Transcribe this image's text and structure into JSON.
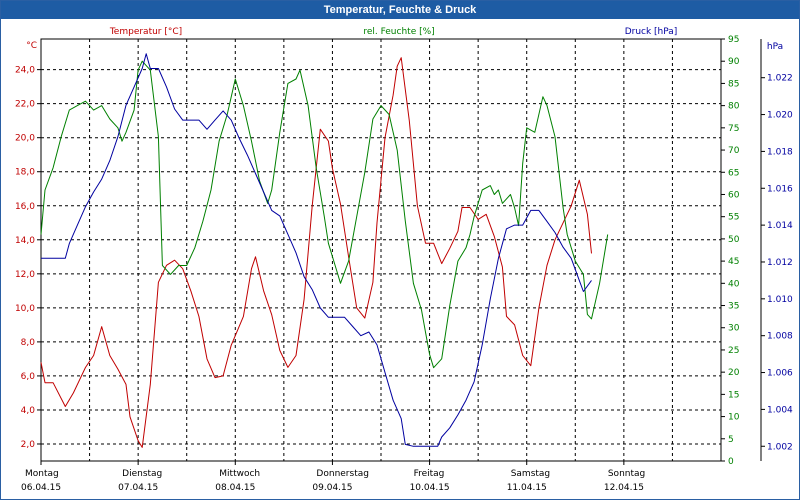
{
  "window": {
    "title": "Temperatur, Feuchte & Druck"
  },
  "colors": {
    "temperature": "#c00000",
    "humidity": "#008000",
    "pressure": "#0000a0",
    "grid": "#000000",
    "title_bar": "#1e5ca4"
  },
  "chart_data": {
    "type": "line",
    "title": "Temperatur, Feuchte & Druck",
    "grid": true,
    "x_ticks": [
      {
        "day": "Montag",
        "date": "06.04.15",
        "x": 0
      },
      {
        "day": "Dienstag",
        "date": "07.04.15",
        "x": 24
      },
      {
        "day": "Mittwoch",
        "date": "08.04.15",
        "x": 48
      },
      {
        "day": "Donnerstag",
        "date": "09.04.15",
        "x": 72
      },
      {
        "day": "Freitag",
        "date": "10.04.15",
        "x": 96
      },
      {
        "day": "Samstag",
        "date": "11.04.15",
        "x": 120
      },
      {
        "day": "Sonntag",
        "date": "12.04.15",
        "x": 144
      }
    ],
    "x_range_hours": [
      0,
      168
    ],
    "axes": {
      "temperature": {
        "label": "Temperatur [°C]",
        "unit": "°C",
        "range": [
          1,
          25.8
        ],
        "ticks": [
          "2,0",
          "4,0",
          "6,0",
          "8,0",
          "10,0",
          "12,0",
          "14,0",
          "16,0",
          "18,0",
          "20,0",
          "22,0",
          "24,0"
        ],
        "tick_values": [
          2,
          4,
          6,
          8,
          10,
          12,
          14,
          16,
          18,
          20,
          22,
          24
        ]
      },
      "humidity": {
        "label": "rel. Feuchte [%]",
        "unit": "%",
        "range": [
          0,
          95
        ],
        "ticks": [
          "0",
          "5",
          "10",
          "15",
          "20",
          "25",
          "30",
          "35",
          "40",
          "45",
          "50",
          "55",
          "60",
          "65",
          "70",
          "75",
          "80",
          "85",
          "90",
          "95"
        ],
        "tick_values": [
          0,
          5,
          10,
          15,
          20,
          25,
          30,
          35,
          40,
          45,
          50,
          55,
          60,
          65,
          70,
          75,
          80,
          85,
          90,
          95
        ]
      },
      "pressure": {
        "label": "Druck [hPa]",
        "unit": "hPa",
        "range": [
          1001.2,
          1024.1
        ],
        "ticks": [
          "1.002",
          "1.004",
          "1.006",
          "1.008",
          "1.010",
          "1.012",
          "1.014",
          "1.016",
          "1.018",
          "1.020",
          "1.022"
        ],
        "tick_values": [
          1002,
          1004,
          1006,
          1008,
          1010,
          1012,
          1014,
          1016,
          1018,
          1020,
          1022
        ]
      }
    },
    "series": [
      {
        "name": "Temperatur [°C]",
        "axis": "temperature",
        "color": "#c00000",
        "points": [
          [
            0,
            6.8
          ],
          [
            1,
            5.6
          ],
          [
            3,
            5.6
          ],
          [
            6,
            4.2
          ],
          [
            8,
            5
          ],
          [
            11,
            6.5
          ],
          [
            13,
            7.2
          ],
          [
            15,
            8.9
          ],
          [
            17,
            7.2
          ],
          [
            19,
            6.4
          ],
          [
            21,
            5.5
          ],
          [
            22,
            3.6
          ],
          [
            24,
            2.2
          ],
          [
            25,
            1.8
          ],
          [
            27,
            5.5
          ],
          [
            29,
            11.5
          ],
          [
            31,
            12.5
          ],
          [
            33,
            12.8
          ],
          [
            35,
            12.3
          ],
          [
            37,
            11
          ],
          [
            39,
            9.5
          ],
          [
            41,
            7
          ],
          [
            43,
            5.9
          ],
          [
            45,
            6
          ],
          [
            47,
            7.8
          ],
          [
            50,
            9.5
          ],
          [
            52,
            12.3
          ],
          [
            53,
            13
          ],
          [
            55,
            11
          ],
          [
            57,
            9.6
          ],
          [
            59,
            7.5
          ],
          [
            61,
            6.5
          ],
          [
            63,
            7.2
          ],
          [
            65,
            10.5
          ],
          [
            67,
            16
          ],
          [
            69,
            20.5
          ],
          [
            71,
            19.8
          ],
          [
            72,
            18.2
          ],
          [
            74,
            16.1
          ],
          [
            76,
            13
          ],
          [
            78,
            10
          ],
          [
            80,
            9.4
          ],
          [
            82,
            11.5
          ],
          [
            83,
            15
          ],
          [
            85,
            20
          ],
          [
            87,
            22.5
          ],
          [
            88,
            24.2
          ],
          [
            89,
            24.7
          ],
          [
            91,
            21
          ],
          [
            93,
            16
          ],
          [
            95,
            13.8
          ],
          [
            97,
            13.8
          ],
          [
            99,
            12.6
          ],
          [
            101,
            13.5
          ],
          [
            103,
            14.5
          ],
          [
            104,
            15.9
          ],
          [
            106,
            15.9
          ],
          [
            108,
            15.2
          ],
          [
            110,
            15.5
          ],
          [
            112,
            14.2
          ],
          [
            114,
            12.4
          ],
          [
            115,
            9.5
          ],
          [
            117,
            9
          ],
          [
            119,
            7.2
          ],
          [
            121,
            6.6
          ],
          [
            123,
            10
          ],
          [
            125,
            12.5
          ],
          [
            127,
            14
          ],
          [
            129,
            15
          ],
          [
            131,
            16
          ],
          [
            133,
            17.5
          ],
          [
            135,
            15.5
          ],
          [
            136,
            13.2
          ]
        ]
      },
      {
        "name": "rel. Feuchte [%]",
        "axis": "humidity",
        "color": "#008000",
        "points": [
          [
            0,
            51
          ],
          [
            1,
            61
          ],
          [
            3,
            66
          ],
          [
            5,
            73
          ],
          [
            7,
            79
          ],
          [
            9,
            80
          ],
          [
            11,
            81
          ],
          [
            13,
            79
          ],
          [
            15,
            80
          ],
          [
            17,
            77
          ],
          [
            19,
            75
          ],
          [
            20,
            72
          ],
          [
            21,
            74
          ],
          [
            23,
            79
          ],
          [
            24,
            88
          ],
          [
            25,
            90
          ],
          [
            27,
            88
          ],
          [
            29,
            73
          ],
          [
            30,
            44
          ],
          [
            32,
            42
          ],
          [
            34,
            44
          ],
          [
            36,
            44
          ],
          [
            38,
            48
          ],
          [
            40,
            54
          ],
          [
            42,
            61
          ],
          [
            44,
            72
          ],
          [
            46,
            78
          ],
          [
            48,
            86
          ],
          [
            50,
            80
          ],
          [
            52,
            72
          ],
          [
            54,
            63
          ],
          [
            56,
            58
          ],
          [
            57,
            61
          ],
          [
            59,
            74
          ],
          [
            61,
            85
          ],
          [
            63,
            86
          ],
          [
            64,
            88
          ],
          [
            66,
            80
          ],
          [
            68,
            66
          ],
          [
            70,
            55
          ],
          [
            71,
            49
          ],
          [
            73,
            43
          ],
          [
            74,
            40
          ],
          [
            76,
            45
          ],
          [
            78,
            55
          ],
          [
            80,
            65
          ],
          [
            82,
            77
          ],
          [
            84,
            80
          ],
          [
            86,
            78
          ],
          [
            88,
            70
          ],
          [
            90,
            54
          ],
          [
            92,
            40
          ],
          [
            94,
            34
          ],
          [
            95,
            29
          ],
          [
            96,
            24
          ],
          [
            97,
            21
          ],
          [
            99,
            23
          ],
          [
            101,
            35
          ],
          [
            103,
            45
          ],
          [
            105,
            48
          ],
          [
            106,
            51
          ],
          [
            107,
            55
          ],
          [
            109,
            61
          ],
          [
            111,
            62
          ],
          [
            112,
            60
          ],
          [
            113,
            61
          ],
          [
            114,
            58
          ],
          [
            116,
            60
          ],
          [
            117,
            57
          ],
          [
            118,
            53
          ],
          [
            119,
            67
          ],
          [
            120,
            75
          ],
          [
            122,
            74
          ],
          [
            124,
            82
          ],
          [
            125,
            80
          ],
          [
            127,
            73
          ],
          [
            129,
            57
          ],
          [
            130,
            51
          ],
          [
            132,
            45
          ],
          [
            134,
            42
          ],
          [
            135,
            33
          ],
          [
            136,
            32
          ],
          [
            138,
            40
          ],
          [
            140,
            51
          ]
        ]
      },
      {
        "name": "Druck [hPa]",
        "axis": "pressure",
        "color": "#0000a0",
        "points": [
          [
            0,
            1012.2
          ],
          [
            6,
            1012.2
          ],
          [
            7,
            1013
          ],
          [
            9,
            1014
          ],
          [
            11,
            1015
          ],
          [
            13,
            1015.8
          ],
          [
            15,
            1016.5
          ],
          [
            17,
            1017.5
          ],
          [
            19,
            1018.8
          ],
          [
            21,
            1020.5
          ],
          [
            23,
            1021.5
          ],
          [
            25,
            1022.5
          ],
          [
            26,
            1023.3
          ],
          [
            27,
            1022.5
          ],
          [
            29,
            1022.5
          ],
          [
            31,
            1021.5
          ],
          [
            33,
            1020.3
          ],
          [
            35,
            1019.7
          ],
          [
            37,
            1019.7
          ],
          [
            39,
            1019.7
          ],
          [
            41,
            1019.2
          ],
          [
            43,
            1019.7
          ],
          [
            45,
            1020.2
          ],
          [
            47,
            1019.7
          ],
          [
            49,
            1018.7
          ],
          [
            51,
            1017.8
          ],
          [
            53,
            1016.8
          ],
          [
            55,
            1015.8
          ],
          [
            57,
            1014.8
          ],
          [
            59,
            1014.5
          ],
          [
            61,
            1013.5
          ],
          [
            63,
            1012.5
          ],
          [
            65,
            1011.2
          ],
          [
            67,
            1010.5
          ],
          [
            69,
            1009.5
          ],
          [
            71,
            1009
          ],
          [
            73,
            1009
          ],
          [
            75,
            1009
          ],
          [
            77,
            1008.5
          ],
          [
            79,
            1008
          ],
          [
            81,
            1008.2
          ],
          [
            83,
            1007.5
          ],
          [
            85,
            1006
          ],
          [
            87,
            1004.5
          ],
          [
            89,
            1003.5
          ],
          [
            90,
            1002.1
          ],
          [
            92,
            1002
          ],
          [
            94,
            1002
          ],
          [
            96,
            1002
          ],
          [
            98,
            1002
          ],
          [
            99,
            1002.5
          ],
          [
            101,
            1003
          ],
          [
            103,
            1003.7
          ],
          [
            105,
            1004.5
          ],
          [
            107,
            1005.5
          ],
          [
            109,
            1007.5
          ],
          [
            111,
            1010
          ],
          [
            113,
            1012.2
          ],
          [
            115,
            1013.8
          ],
          [
            117,
            1014
          ],
          [
            119,
            1014
          ],
          [
            121,
            1014.8
          ],
          [
            123,
            1014.8
          ],
          [
            125,
            1014.2
          ],
          [
            127,
            1013.6
          ],
          [
            129,
            1012.8
          ],
          [
            131,
            1012.2
          ],
          [
            133,
            1011
          ],
          [
            134,
            1010.4
          ],
          [
            136,
            1011
          ]
        ]
      }
    ]
  }
}
